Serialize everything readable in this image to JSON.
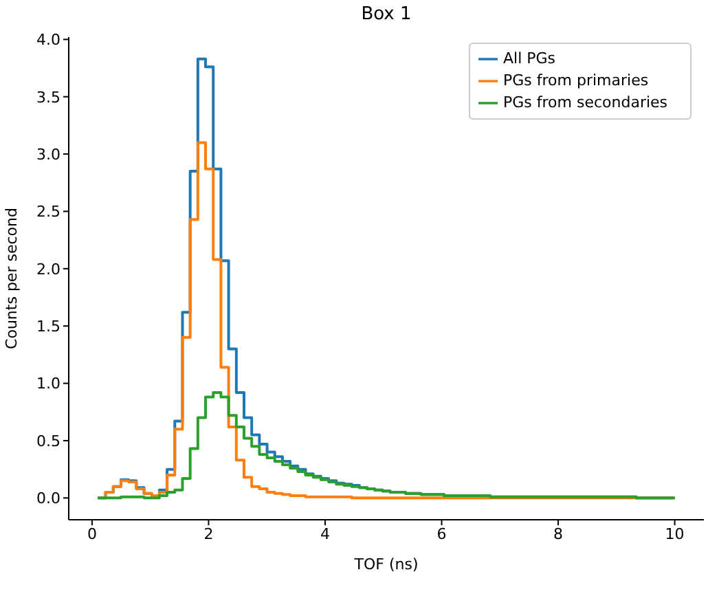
{
  "chart_data": {
    "type": "histogram",
    "title": "Box 1",
    "xlabel": "TOF (ns)",
    "ylabel": "Counts per second",
    "bins": [
      0.1,
      0.232,
      0.364,
      0.496,
      0.628,
      0.76,
      0.892,
      1.024,
      1.156,
      1.288,
      1.42,
      1.552,
      1.684,
      1.816,
      1.948,
      2.08,
      2.212,
      2.344,
      2.476,
      2.608,
      2.74,
      2.872,
      3.004,
      3.136,
      3.268,
      3.4,
      3.532,
      3.664,
      3.796,
      3.928,
      4.06,
      4.192,
      4.324,
      4.456,
      4.588,
      4.72,
      4.852,
      4.984,
      5.116,
      5.248,
      5.38,
      5.512,
      5.644,
      5.776,
      5.908,
      6.04,
      6.172,
      6.304,
      6.436,
      6.568,
      6.7,
      6.832,
      6.964,
      7.096,
      7.228,
      7.36,
      7.492,
      7.624,
      7.756,
      7.888,
      8.02,
      8.152,
      8.284,
      8.416,
      8.548,
      8.68,
      8.812,
      8.944,
      9.076,
      9.208,
      9.34,
      9.472,
      9.604,
      9.736,
      9.868,
      10.0
    ],
    "series": [
      {
        "name": "All PGs",
        "color": "#1f77b4",
        "values": [
          0,
          0.05,
          0.1,
          0.16,
          0.15,
          0.09,
          0.04,
          0.02,
          0.07,
          0.25,
          0.67,
          1.62,
          2.85,
          3.83,
          3.76,
          2.87,
          2.07,
          1.3,
          0.92,
          0.7,
          0.55,
          0.47,
          0.4,
          0.36,
          0.32,
          0.28,
          0.25,
          0.21,
          0.19,
          0.17,
          0.15,
          0.13,
          0.12,
          0.11,
          0.09,
          0.08,
          0.07,
          0.06,
          0.05,
          0.05,
          0.04,
          0.04,
          0.03,
          0.03,
          0.03,
          0.02,
          0.02,
          0.02,
          0.02,
          0.02,
          0.02,
          0.01,
          0.01,
          0.01,
          0.01,
          0.01,
          0.01,
          0.01,
          0.01,
          0.01,
          0.01,
          0.01,
          0.01,
          0.01,
          0.01,
          0.01,
          0.01,
          0.01,
          0.01,
          0.01,
          0,
          0,
          0,
          0,
          0
        ]
      },
      {
        "name": "PGs from primaries",
        "color": "#ff7f0e",
        "values": [
          0,
          0.05,
          0.1,
          0.15,
          0.14,
          0.08,
          0.04,
          0.02,
          0.05,
          0.2,
          0.6,
          1.4,
          2.43,
          3.1,
          2.87,
          2.08,
          1.14,
          0.62,
          0.33,
          0.18,
          0.1,
          0.08,
          0.05,
          0.04,
          0.03,
          0.02,
          0.02,
          0.01,
          0.01,
          0.01,
          0.01,
          0.01,
          0.01,
          0,
          0,
          0,
          0,
          0,
          0,
          0,
          0,
          0,
          0,
          0,
          0,
          0,
          0,
          0,
          0,
          0,
          0,
          0,
          0,
          0,
          0,
          0,
          0,
          0,
          0,
          0,
          0,
          0,
          0,
          0,
          0,
          0,
          0,
          0,
          0,
          0,
          0,
          0,
          0,
          0,
          0
        ]
      },
      {
        "name": "PGs from secondaries",
        "color": "#2ca02c",
        "values": [
          0,
          0,
          0,
          0.01,
          0.01,
          0.01,
          0,
          0,
          0.02,
          0.05,
          0.07,
          0.17,
          0.43,
          0.7,
          0.88,
          0.92,
          0.88,
          0.72,
          0.62,
          0.52,
          0.45,
          0.38,
          0.35,
          0.32,
          0.29,
          0.26,
          0.23,
          0.2,
          0.18,
          0.16,
          0.14,
          0.12,
          0.11,
          0.1,
          0.09,
          0.08,
          0.07,
          0.06,
          0.05,
          0.05,
          0.04,
          0.04,
          0.03,
          0.03,
          0.03,
          0.02,
          0.02,
          0.02,
          0.02,
          0.02,
          0.02,
          0.01,
          0.01,
          0.01,
          0.01,
          0.01,
          0.01,
          0.01,
          0.01,
          0.01,
          0.01,
          0.01,
          0.01,
          0.01,
          0.01,
          0.01,
          0.01,
          0.01,
          0.01,
          0.01,
          0,
          0,
          0,
          0,
          0
        ]
      }
    ],
    "xlim": [
      -0.4,
      10.5
    ],
    "xticks": [
      0,
      2,
      4,
      6,
      8,
      10
    ],
    "ylim": [
      -0.19,
      4.02
    ],
    "yticks": [
      {
        "value": 0,
        "label": "0.0"
      },
      {
        "value": 0.5,
        "label": "0.5"
      },
      {
        "value": 1,
        "label": "1.0"
      },
      {
        "value": 1.5,
        "label": "1.5"
      },
      {
        "value": 2,
        "label": "2.0"
      },
      {
        "value": 2.5,
        "label": "2.5"
      },
      {
        "value": 3,
        "label": "3.0"
      },
      {
        "value": 3.5,
        "label": "3.5"
      },
      {
        "value": 4,
        "label": "4.0"
      }
    ],
    "legend": "top right",
    "grid": false
  }
}
